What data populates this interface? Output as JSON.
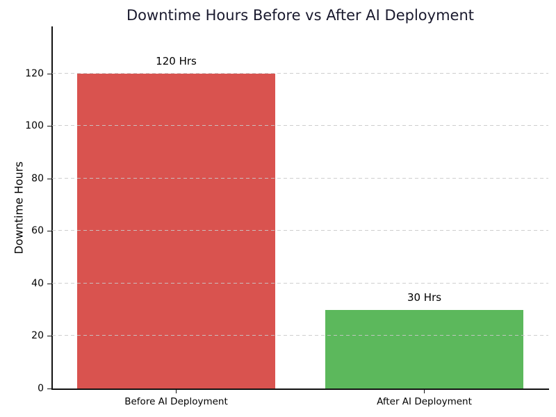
{
  "chart_data": {
    "type": "bar",
    "title": "Downtime Hours Before vs After AI Deployment",
    "categories": [
      "Before AI Deployment",
      "After AI Deployment"
    ],
    "values": [
      120,
      30
    ],
    "bar_labels": [
      "120 Hrs",
      "30 Hrs"
    ],
    "bar_colors": [
      "#d9534f",
      "#5cb85c"
    ],
    "xlabel": "",
    "ylabel": "Downtime Hours",
    "ylim": [
      0,
      138
    ],
    "yticks": [
      0,
      20,
      40,
      60,
      80,
      100,
      120
    ],
    "grid": {
      "axis": "y",
      "style": "dashed",
      "color": "#c9c9c9",
      "above_bars": true
    },
    "legend_position": "none",
    "colors": {
      "title": "#1a1a2e",
      "text": "#000000",
      "spine": "#111111",
      "background": "#ffffff"
    }
  }
}
